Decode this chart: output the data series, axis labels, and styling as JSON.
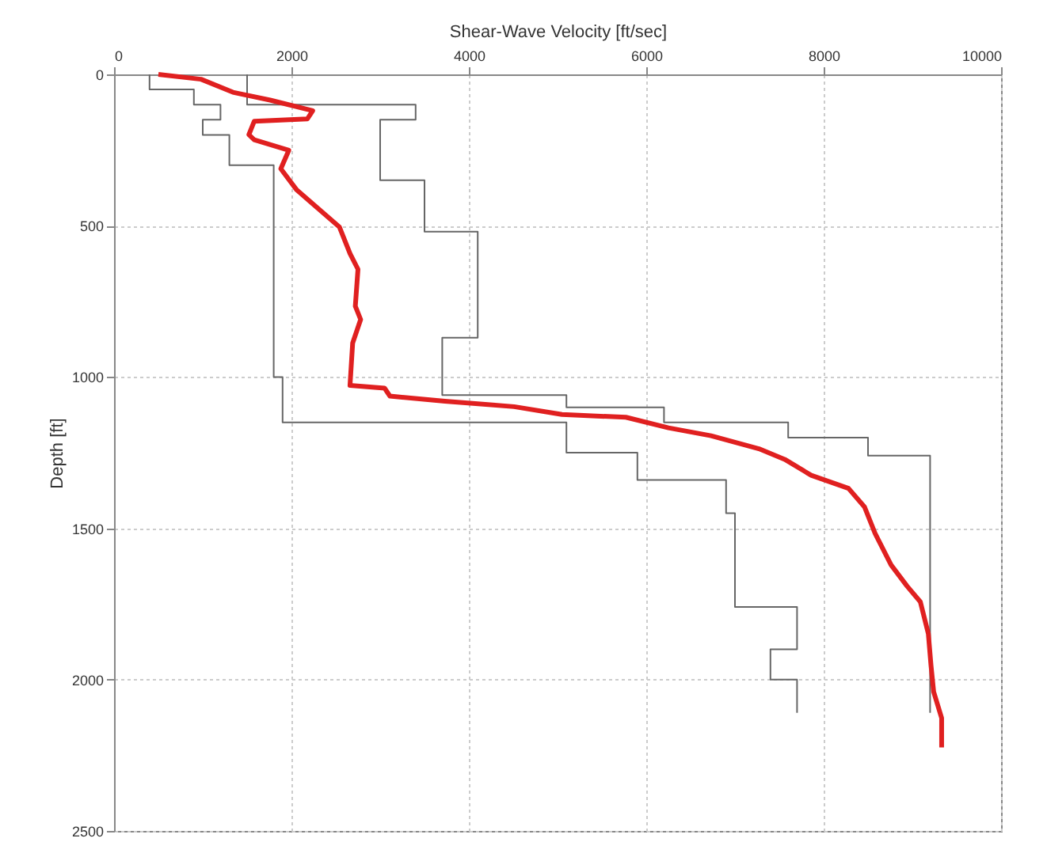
{
  "chart_data": {
    "type": "line",
    "xlabel": "Shear-Wave Velocity [ft/sec]",
    "ylabel": "Depth [ft]",
    "xlim": [
      0,
      10000
    ],
    "xticks": [
      0,
      2000,
      4000,
      6000,
      8000,
      10000
    ],
    "ylim": [
      2500,
      0
    ],
    "yticks": [
      0,
      500,
      1000,
      1500,
      2000,
      2500
    ],
    "grid": true,
    "marker": "none",
    "line_style": "solid",
    "series": [
      {
        "color": "#666666",
        "x": [
          400,
          400,
          900,
          900,
          1200,
          1200,
          1000,
          1000,
          1300,
          1300,
          1800,
          1800,
          1900,
          1900,
          5100,
          5100,
          5900,
          5900,
          6900,
          6900,
          7000,
          7000,
          7700,
          7700,
          7400,
          7400,
          7700,
          7700
        ],
        "values": [
          0,
          50,
          50,
          100,
          100,
          150,
          150,
          200,
          200,
          300,
          300,
          1000,
          1000,
          1150,
          1150,
          1250,
          1250,
          1340,
          1340,
          1450,
          1450,
          1760,
          1760,
          1900,
          1900,
          2000,
          2000,
          2110
        ]
      },
      {
        "color": "#666666",
        "x": [
          1500,
          1500,
          3400,
          3400,
          3000,
          3000,
          3500,
          3500,
          4100,
          4100,
          3700,
          3700,
          5100,
          5100,
          6200,
          6200,
          7600,
          7600,
          8500,
          8500,
          9200,
          9200
        ],
        "values": [
          0,
          100,
          100,
          150,
          150,
          350,
          350,
          520,
          520,
          870,
          870,
          1060,
          1060,
          1100,
          1100,
          1150,
          1150,
          1200,
          1200,
          1260,
          1260,
          2110
        ]
      },
      {
        "color": "#e02020",
        "x": [
          500,
          980,
          1340,
          1760,
          2240,
          2180,
          1580,
          1520,
          1580,
          1970,
          1880,
          2060,
          2540,
          2660,
          2750,
          2720,
          2780,
          2690,
          2660,
          3050,
          3110,
          3730,
          4510,
          5050,
          5770,
          6250,
          6730,
          7270,
          7560,
          7860,
          8280,
          8460,
          8580,
          8760,
          8940,
          9090,
          9180,
          9210,
          9240,
          9330,
          9330
        ],
        "values": [
          0,
          16,
          59,
          85,
          120,
          147,
          155,
          199,
          216,
          251,
          312,
          382,
          504,
          592,
          644,
          766,
          810,
          888,
          1028,
          1037,
          1063,
          1080,
          1098,
          1124,
          1133,
          1168,
          1194,
          1237,
          1272,
          1325,
          1368,
          1429,
          1517,
          1621,
          1691,
          1743,
          1848,
          1953,
          2040,
          2127,
          2224
        ]
      }
    ]
  }
}
